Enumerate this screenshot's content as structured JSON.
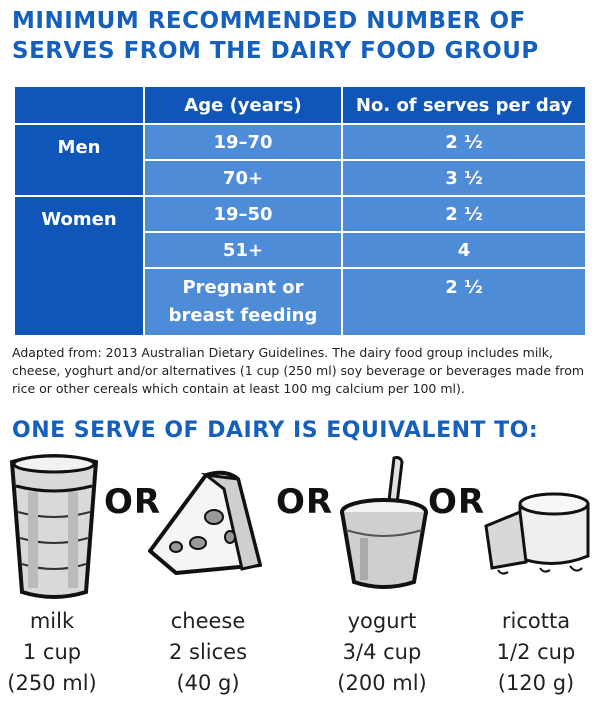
{
  "title": "MINIMUM RECOMMENDED NUMBER OF SERVES FROM THE DAIRY FOOD GROUP",
  "table": {
    "headers": [
      "Age (years)",
      "No. of serves per day"
    ],
    "groups": [
      {
        "label": "Men",
        "rows": [
          {
            "age": "19–70",
            "serves": "2 ½"
          },
          {
            "age": "70+",
            "serves": "3 ½"
          }
        ]
      },
      {
        "label": "Women",
        "rows": [
          {
            "age": "19–50",
            "serves": "2 ½"
          },
          {
            "age": "51+",
            "serves": "4"
          },
          {
            "age_line1": "Pregnant or",
            "age_line2": "breast feeding",
            "serves": "2 ½"
          }
        ]
      }
    ]
  },
  "note": "Adapted from: 2013 Australian Dietary Guidelines. The dairy food group includes milk, cheese, yoghurt and/or alternatives (1 cup (250 ml) soy beverage or beverages made from rice or other cereals which contain at least 100 mg calcium per 100 ml).",
  "subtitle": "ONE SERVE OF DAIRY IS EQUIVALENT TO:",
  "or_label": "OR",
  "foods": [
    {
      "name": "milk",
      "amount": "1 cup",
      "metric": "(250 ml)",
      "icon": "glass-of-milk-icon"
    },
    {
      "name": "cheese",
      "amount": "2 slices",
      "metric": "(40 g)",
      "icon": "cheese-wedge-icon"
    },
    {
      "name": "yogurt",
      "amount": "3/4 cup",
      "metric": "(200 ml)",
      "icon": "yogurt-cup-icon"
    },
    {
      "name": "ricotta",
      "amount": "1/2 cup",
      "metric": "(120 g)",
      "icon": "ricotta-icon"
    }
  ]
}
